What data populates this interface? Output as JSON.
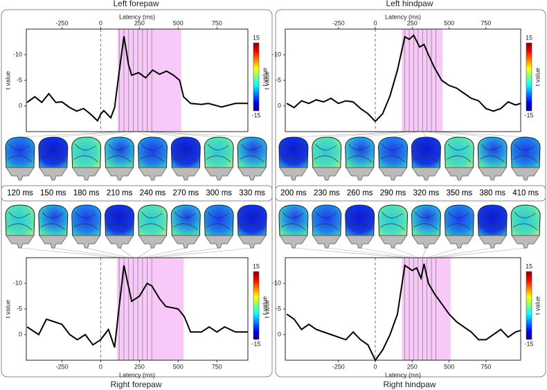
{
  "chart_data": [
    {
      "type": "line",
      "title": "Left forepaw",
      "x_label": "Latency (ms)",
      "y_label": "t value",
      "xaxis": "top",
      "color": "#000000",
      "x": [
        -475,
        -425,
        -380,
        -335,
        -290,
        -250,
        -200,
        -155,
        -110,
        -65,
        -20,
        0,
        20,
        65,
        90,
        110,
        150,
        180,
        200,
        245,
        290,
        335,
        380,
        425,
        470,
        510,
        535,
        580,
        650,
        695,
        780,
        870,
        950
      ],
      "values": [
        -0.7,
        -1.8,
        -0.7,
        -2.4,
        -0.7,
        -0.8,
        0.3,
        1.0,
        0.5,
        1.6,
        2.9,
        1.6,
        0.9,
        2.3,
        0.3,
        -4.5,
        -13.6,
        -8.0,
        -6.0,
        -6.5,
        -5.5,
        -7.0,
        -6.2,
        -6.8,
        -6.0,
        -5.0,
        -1.8,
        -0.5,
        -0.3,
        -0.5,
        0.2,
        -0.5,
        -0.5
      ],
      "xlim": [
        -480,
        950
      ],
      "ylim": [
        5,
        -15
      ],
      "xticks": [
        -250,
        0,
        250,
        500,
        750
      ],
      "yticks": [
        -10,
        -5,
        0
      ],
      "shade": [
        110,
        520
      ],
      "shade_color": "#f8c8f8",
      "markers": [
        {
          "value": 120,
          "label": "120 ms"
        },
        {
          "value": 150,
          "label": "150 ms"
        },
        {
          "value": 180,
          "label": "180 ms"
        },
        {
          "value": 210,
          "label": "210 ms"
        },
        {
          "value": 240,
          "label": "240 ms"
        },
        {
          "value": 270,
          "label": "270 ms"
        },
        {
          "value": 300,
          "label": "300 ms"
        },
        {
          "value": 330,
          "label": "330 ms"
        }
      ],
      "colorbar": {
        "label": "t value",
        "lim": [
          -15,
          15
        ],
        "ticks": [
          15,
          -15
        ]
      }
    },
    {
      "type": "line",
      "title": "Left hindpaw",
      "x_label": "Latency (ms)",
      "y_label": "t value",
      "xaxis": "top",
      "color": "#000000",
      "x": [
        -600,
        -550,
        -500,
        -450,
        -400,
        -350,
        -300,
        -250,
        -200,
        -150,
        -100,
        -50,
        0,
        50,
        100,
        150,
        200,
        230,
        260,
        300,
        330,
        360,
        400,
        450,
        500,
        550,
        600,
        650,
        700,
        750,
        800,
        850,
        900,
        950,
        985
      ],
      "values": [
        -0.5,
        0.3,
        -1.0,
        -0.5,
        -1.2,
        -0.8,
        -1.5,
        -0.5,
        -1.0,
        -0.8,
        0.5,
        1.5,
        3.0,
        1.5,
        -2.0,
        -7.0,
        -13.5,
        -13.0,
        -13.8,
        -11.5,
        -12.0,
        -10.0,
        -7.5,
        -5.0,
        -4.0,
        -3.5,
        -2.5,
        -1.5,
        -1.0,
        0.5,
        1.0,
        0.5,
        -0.8,
        -0.2,
        -0.5
      ],
      "xlim": [
        -610,
        985
      ],
      "ylim": [
        5,
        -15
      ],
      "xticks": [
        -250,
        0,
        250,
        500,
        750
      ],
      "yticks": [
        -10,
        -5,
        0
      ],
      "shade": [
        180,
        455
      ],
      "shade_color": "#f8c8f8",
      "markers": [
        {
          "value": 200,
          "label": "200 ms"
        },
        {
          "value": 230,
          "label": "230 ms"
        },
        {
          "value": 260,
          "label": "260 ms"
        },
        {
          "value": 290,
          "label": "290 ms"
        },
        {
          "value": 320,
          "label": "320 ms"
        },
        {
          "value": 350,
          "label": "350 ms"
        },
        {
          "value": 380,
          "label": "380 ms"
        },
        {
          "value": 410,
          "label": "410 ms"
        }
      ],
      "colorbar": {
        "label": "t value",
        "lim": [
          -15,
          15
        ],
        "ticks": [
          15,
          -15
        ]
      }
    },
    {
      "type": "line",
      "title": "Right forepaw",
      "x_label": "Latency (ms)",
      "y_label": "t value",
      "xaxis": "bottom",
      "color": "#000000",
      "x": [
        -475,
        -400,
        -350,
        -300,
        -250,
        -200,
        -150,
        -100,
        -50,
        0,
        50,
        90,
        110,
        150,
        200,
        250,
        300,
        330,
        380,
        420,
        500,
        540,
        580,
        650,
        700,
        750,
        800,
        870,
        950
      ],
      "values": [
        -1.5,
        0,
        -3,
        -2.5,
        -2,
        0,
        1,
        0,
        2,
        1,
        -1,
        2.5,
        -3,
        -13.5,
        -6.5,
        -7.5,
        -10,
        -9.5,
        -7,
        -5.5,
        -5,
        -3.5,
        -0.5,
        -0.5,
        -1.5,
        -0.5,
        -1.5,
        -0.5,
        -0.5
      ],
      "xlim": [
        -480,
        950
      ],
      "ylim": [
        5,
        -15
      ],
      "xticks": [
        -250,
        0,
        250,
        500,
        750
      ],
      "yticks": [
        -10,
        -5,
        0
      ],
      "shade": [
        105,
        535
      ],
      "shade_color": "#f8c8f8",
      "markers": [
        {
          "value": 120,
          "label": "120 ms"
        },
        {
          "value": 150,
          "label": "150 ms"
        },
        {
          "value": 180,
          "label": "180 ms"
        },
        {
          "value": 210,
          "label": "210 ms"
        },
        {
          "value": 240,
          "label": "240 ms"
        },
        {
          "value": 270,
          "label": "270 ms"
        },
        {
          "value": 300,
          "label": "300 ms"
        },
        {
          "value": 330,
          "label": "330 ms"
        }
      ],
      "colorbar": {
        "label": "t value",
        "lim": [
          -15,
          15
        ],
        "ticks": [
          15,
          -15
        ]
      }
    },
    {
      "type": "line",
      "title": "Right hindpaw",
      "x_label": "Latency (ms)",
      "y_label": "t value",
      "xaxis": "bottom",
      "color": "#000000",
      "x": [
        -600,
        -550,
        -500,
        -450,
        -400,
        -300,
        -200,
        -150,
        -100,
        -50,
        0,
        50,
        100,
        150,
        200,
        250,
        280,
        310,
        330,
        360,
        400,
        450,
        500,
        550,
        600,
        650,
        700,
        750,
        800,
        850,
        900,
        950,
        985
      ],
      "values": [
        -4,
        -3,
        -1,
        -2,
        -1,
        0,
        1,
        -0.5,
        1,
        2,
        5,
        3,
        0,
        -4,
        -13.5,
        -12.5,
        -13,
        -11,
        -13.8,
        -10,
        -8,
        -6,
        -4,
        -2.5,
        -1.5,
        -0.5,
        1,
        1,
        0,
        -1,
        0.5,
        -0.5,
        -0.8
      ],
      "xlim": [
        -610,
        985
      ],
      "ylim": [
        5,
        -15
      ],
      "xticks": [
        -250,
        0,
        250,
        500,
        750
      ],
      "yticks": [
        -10,
        -5,
        0
      ],
      "shade": [
        180,
        510
      ],
      "shade_color": "#f8c8f8",
      "markers": [
        {
          "value": 200,
          "label": "200 ms"
        },
        {
          "value": 230,
          "label": "230 ms"
        },
        {
          "value": 260,
          "label": "260 ms"
        },
        {
          "value": 290,
          "label": "290 ms"
        },
        {
          "value": 320,
          "label": "320 ms"
        },
        {
          "value": 350,
          "label": "350 ms"
        },
        {
          "value": 380,
          "label": "380 ms"
        },
        {
          "value": 410,
          "label": "410 ms"
        }
      ],
      "colorbar": {
        "label": "t value",
        "lim": [
          -15,
          15
        ],
        "ticks": [
          15,
          -15
        ]
      }
    }
  ]
}
